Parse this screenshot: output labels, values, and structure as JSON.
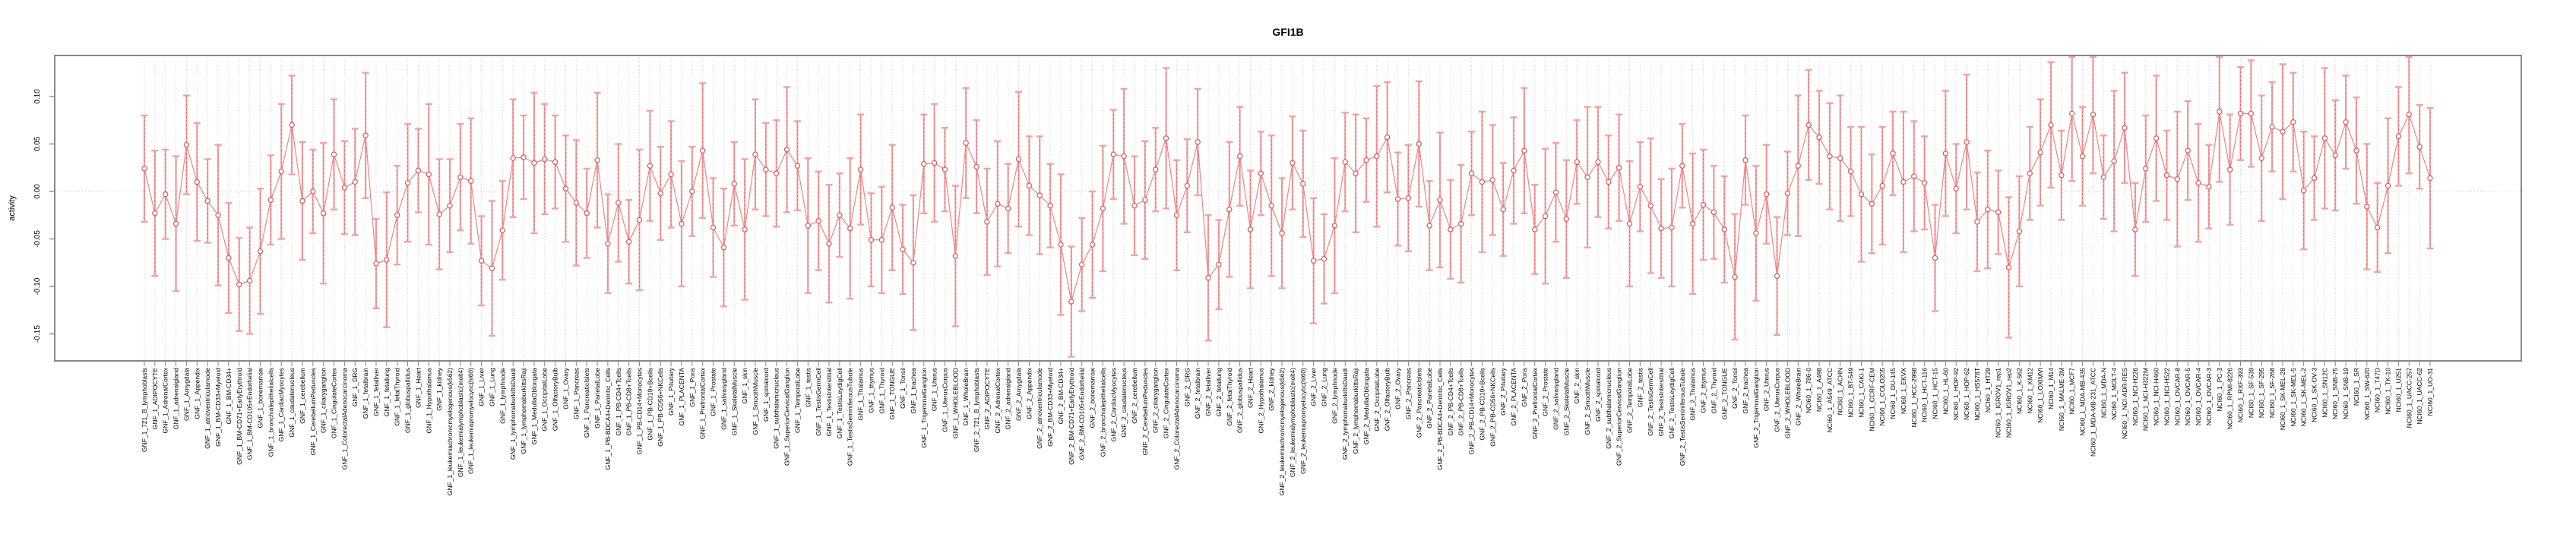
{
  "title": "GFI1B",
  "ylabel": "activity",
  "chart_data": {
    "type": "scatter",
    "subtype": "point-estimates-with-error-bars",
    "title": "GFI1B",
    "xlabel": "",
    "ylabel": "activity",
    "ylim": [
      -0.178,
      0.143
    ],
    "grid": {
      "vertical_dotted_per_category": true,
      "horizontal_dotted_at_zero": true
    },
    "legend": "none",
    "colors": {
      "error_bar": "#f3a2a2",
      "error_bar_dash": "#e06666",
      "point_stroke": "#dd5a5a",
      "series_line": "#ee8585",
      "grid_line": "#c9c9c9",
      "axis_box": "#878787",
      "text": "#000000"
    },
    "yticks": [
      {
        "value": 0.1,
        "label": "0.10"
      },
      {
        "value": 0.05,
        "label": "0.05"
      },
      {
        "value": 0.0,
        "label": "0.00"
      },
      {
        "value": -0.05,
        "label": "-0.05"
      },
      {
        "value": -0.1,
        "label": "-0.10"
      },
      {
        "value": -0.15,
        "label": "-0.15"
      }
    ],
    "x_groups": [
      {
        "prefix": "GNF_1_",
        "names": [
          "721_B_lymphoblasts",
          "ADIPOCYTE",
          "AdrenalCortex",
          "adrenalgland",
          "Amygdala",
          "Appendix",
          "atrioventricularnode",
          "BM-CD33+Myeloid",
          "BM-CD34+",
          "BM-CD71+EarlyErythroid",
          "BM-CD105+Endothelial",
          "bonemarrow",
          "bronchialepithelialcells",
          "CardiacMyocytes",
          "caudatenucleus",
          "cerebellum",
          "CerebellumPeduncles",
          "ciliaryganglion",
          "CingulateCortex",
          "ColorectalAdenocarcinoma",
          "DRG",
          "fetalbrain",
          "fetalliver",
          "fetallung",
          "fetalThyroid",
          "globuspallidus",
          "Heart",
          "Hypothalamus",
          "kidney",
          "leukemiachronicmyelogenous(k562)",
          "leukemialymphoblastic(molt4)",
          "leukemiapromyelocytic(hl60)",
          "Liver",
          "Lung",
          "lymphnode",
          "lymphomaburkittsDaudi",
          "lymphomaburkittsRaji",
          "MedullaOblongata",
          "OccipitalLobe",
          "OlfactoryBulb",
          "Ovary",
          "Pancreas",
          "PancreaticIslets",
          "ParietalLobe",
          "PB-BDCA4+Dentritic_Cells",
          "PB-CD4+Tcells",
          "PB-CD8+Tcells",
          "PB-CD14+Monocytes",
          "PB-CD19+Bcells",
          "PB-CD56+NKCells",
          "Pituitary",
          "PLACENTA",
          "Pons",
          "PrefrontalCortex",
          "Prostate",
          "salivarygland",
          "SkeletalMuscle",
          "skin",
          "SmoothMuscle",
          "spinalcord",
          "subthalamicnucleus",
          "SuperiorCervicalGanglion",
          "TemporalLobe",
          "testis",
          "TestisGermCell",
          "TestisInterstitial",
          "TestisLeydigCell",
          "TestisSeminiferousTubule",
          "Thalamus",
          "thymus",
          "Thyroid",
          "TONGUE",
          "Tonsil",
          "trachea",
          "TrigeminalGanglion",
          "Uterus",
          "UterusCorpus",
          "WHOLEBLOOD",
          "WholeBrain"
        ]
      },
      {
        "prefix": "GNF_2_",
        "names": [
          "721_B_lymphoblasts",
          "ADIPOCYTE",
          "AdrenalCortex",
          "adrenalgland",
          "Amygdala",
          "Appendix",
          "atrioventricularnode",
          "BM-CD33+Myeloid",
          "BM-CD34+",
          "BM-CD71+EarlyErythroid",
          "BM-CD105+Endothelial",
          "bonemarrow",
          "bronchialepithelialcells",
          "CardiacMyocytes",
          "caudatenucleus",
          "cerebellum",
          "CerebellumPeduncles",
          "ciliaryganglion",
          "CingulateCortex",
          "ColorectalAdenocarcinoma",
          "DRG",
          "fetalbrain",
          "fetalliver",
          "fetallung",
          "fetalThyroid",
          "globuspallidus",
          "Heart",
          "Hypothalamus",
          "kidney",
          "leukemiachronicmyelogenous(k562)",
          "leukemialymphoblastic(molt4)",
          "leukemiapromyelocytic(hl60)",
          "Liver",
          "Lung",
          "lymphnode",
          "lymphomaburkittsDaudi",
          "lymphomaburkittsRaji",
          "MedullaOblongata",
          "OccipitalLobe",
          "OlfactoryBulb",
          "Ovary",
          "Pancreas",
          "PancreaticIslets",
          "ParietalLobe",
          "PB-BDCA4+Dentritic_Cells",
          "PB-CD4+Tcells",
          "PB-CD8+Tcells",
          "PB-CD14+Monocytes",
          "PB-CD19+Bcells",
          "PB-CD56+NKCells",
          "Pituitary",
          "PLACENTA",
          "Pons",
          "PrefrontalCortex",
          "Prostate",
          "salivarygland",
          "SkeletalMuscle",
          "skin",
          "SmoothMuscle",
          "spinalcord",
          "subthalamicnucleus",
          "SuperiorCervicalGanglion",
          "TemporalLobe",
          "testis",
          "TestisGermCell",
          "TestisInterstitial",
          "TestisLeydigCell",
          "TestisSeminiferousTubule",
          "Thalamus",
          "thymus",
          "Thyroid",
          "TONGUE",
          "Tonsil",
          "trachea",
          "TrigeminalGanglion",
          "Uterus",
          "UterusCorpus",
          "WHOLEBLOOD",
          "WholeBrain"
        ]
      },
      {
        "prefix": "NCI60_1_",
        "names": [
          "786-0",
          "A498",
          "A549_ATCC",
          "ACHN",
          "BT-549",
          "CAKI-1",
          "CCRF-CEM",
          "COLO205",
          "DU-145",
          "EKVX",
          "HCC-2998",
          "HCT-116",
          "HCT-15",
          "HL-60",
          "HOP-92",
          "HOP-62",
          "HS578T",
          "HT29",
          "IGROV1_rep1",
          "IGROV1_rep2",
          "K-562",
          "KM12",
          "LOXIMVI",
          "M14",
          "MALME-3M",
          "MCF7",
          "MDA-MB-435",
          "MDA-MB-231_ATCC",
          "MDA-N",
          "MOLT-4",
          "NCI-ADR-RES",
          "NCI-H226",
          "NCI-H322M",
          "NCI-H460",
          "NCI-H522",
          "OVCAR-8",
          "OVCAR-5",
          "OVCAR-4",
          "OVCAR-3",
          "PC-3",
          "RPMI-8226",
          "RXF-393",
          "SF-539",
          "SF-295",
          "SF-268",
          "SK-MEL-28",
          "SK-MEL-5",
          "SK-MEL-2",
          "SK-OV-3",
          "SN12C",
          "SNB-75",
          "SNB-19",
          "SR",
          "SW-620",
          "T47D",
          "TK-10",
          "U251",
          "UACC-257",
          "UACC-62",
          "UO-31"
        ]
      }
    ],
    "values": [
      0.024,
      -0.023,
      -0.003,
      -0.034,
      0.049,
      0.01,
      -0.01,
      -0.025,
      -0.07,
      -0.098,
      -0.094,
      -0.063,
      -0.009,
      0.021,
      0.07,
      -0.01,
      0.0,
      -0.023,
      0.039,
      0.004,
      0.01,
      0.059,
      -0.076,
      -0.072,
      -0.025,
      0.009,
      0.022,
      0.018,
      -0.024,
      -0.015,
      0.015,
      0.011,
      -0.073,
      -0.081,
      -0.041,
      0.035,
      0.036,
      0.03,
      0.034,
      0.031,
      0.003,
      -0.012,
      -0.023,
      0.033,
      -0.055,
      -0.012,
      -0.053,
      -0.03,
      0.027,
      -0.002,
      0.018,
      -0.034,
      0.0,
      0.043,
      -0.038,
      -0.059,
      0.008,
      -0.04,
      0.039,
      0.023,
      0.019,
      0.044,
      0.027,
      -0.036,
      -0.031,
      -0.055,
      -0.025,
      -0.039,
      0.023,
      -0.051,
      -0.051,
      -0.017,
      -0.061,
      -0.075,
      0.029,
      0.03,
      0.023,
      -0.068,
      0.051,
      0.026,
      -0.032,
      -0.013,
      -0.018,
      0.034,
      0.006,
      -0.004,
      -0.015,
      -0.056,
      -0.116,
      -0.077,
      -0.056,
      -0.018,
      0.039,
      0.037,
      -0.015,
      -0.009,
      0.023,
      0.056,
      -0.025,
      0.006,
      0.052,
      -0.091,
      -0.077,
      -0.019,
      0.037,
      -0.04,
      0.019,
      -0.015,
      -0.044,
      0.03,
      0.008,
      -0.073,
      -0.071,
      -0.036,
      0.031,
      0.019,
      0.033,
      0.037,
      0.057,
      -0.008,
      -0.007,
      0.05,
      -0.036,
      -0.009,
      -0.04,
      -0.034,
      0.019,
      0.01,
      0.012,
      -0.019,
      0.022,
      0.043,
      -0.04,
      -0.026,
      -0.001,
      -0.029,
      0.031,
      0.015,
      0.031,
      0.01,
      0.025,
      -0.034,
      0.005,
      -0.015,
      -0.039,
      -0.038,
      0.027,
      -0.034,
      -0.014,
      -0.022,
      -0.04,
      -0.09,
      0.033,
      -0.044,
      -0.003,
      -0.089,
      -0.002,
      0.027,
      0.07,
      0.057,
      0.037,
      0.035,
      0.021,
      -0.003,
      -0.013,
      0.006,
      0.04,
      0.01,
      0.016,
      0.009,
      -0.07,
      0.04,
      0.003,
      0.052,
      -0.032,
      -0.019,
      -0.022,
      -0.08,
      -0.042,
      0.019,
      0.041,
      0.07,
      0.017,
      0.082,
      0.037,
      0.081,
      0.015,
      0.032,
      0.067,
      -0.04,
      0.024,
      0.056,
      0.017,
      0.013,
      0.043,
      0.009,
      0.005,
      0.084,
      0.023,
      0.082,
      0.082,
      0.035,
      0.068,
      0.063,
      0.073,
      0.001,
      0.014,
      0.056,
      0.038,
      0.073,
      0.043,
      -0.016,
      -0.038,
      0.006,
      0.058,
      0.081,
      0.047,
      0.014
    ],
    "err": [
      0.056,
      0.066,
      0.047,
      0.071,
      0.052,
      0.062,
      0.044,
      0.074,
      0.058,
      0.049,
      0.056,
      0.066,
      0.047,
      0.071,
      0.052,
      0.062,
      0.044,
      0.074,
      0.058,
      0.049,
      0.056,
      0.066,
      0.047,
      0.071,
      0.052,
      0.062,
      0.044,
      0.074,
      0.058,
      0.049,
      0.056,
      0.066,
      0.047,
      0.071,
      0.052,
      0.062,
      0.044,
      0.074,
      0.058,
      0.049,
      0.056,
      0.066,
      0.047,
      0.071,
      0.052,
      0.062,
      0.044,
      0.074,
      0.058,
      0.049,
      0.056,
      0.066,
      0.047,
      0.071,
      0.052,
      0.062,
      0.044,
      0.074,
      0.058,
      0.049,
      0.056,
      0.066,
      0.047,
      0.071,
      0.052,
      0.062,
      0.044,
      0.074,
      0.058,
      0.049,
      0.056,
      0.066,
      0.047,
      0.071,
      0.052,
      0.062,
      0.044,
      0.074,
      0.058,
      0.049,
      0.056,
      0.066,
      0.047,
      0.071,
      0.052,
      0.062,
      0.044,
      0.074,
      0.058,
      0.049,
      0.056,
      0.066,
      0.047,
      0.071,
      0.052,
      0.062,
      0.044,
      0.074,
      0.058,
      0.049,
      0.056,
      0.066,
      0.047,
      0.071,
      0.052,
      0.062,
      0.044,
      0.074,
      0.058,
      0.049,
      0.056,
      0.066,
      0.047,
      0.071,
      0.052,
      0.062,
      0.044,
      0.074,
      0.058,
      0.049,
      0.056,
      0.066,
      0.047,
      0.071,
      0.052,
      0.062,
      0.044,
      0.074,
      0.058,
      0.049,
      0.056,
      0.066,
      0.047,
      0.071,
      0.052,
      0.062,
      0.044,
      0.074,
      0.058,
      0.049,
      0.056,
      0.066,
      0.047,
      0.071,
      0.052,
      0.062,
      0.044,
      0.074,
      0.058,
      0.049,
      0.056,
      0.066,
      0.047,
      0.071,
      0.052,
      0.062,
      0.044,
      0.074,
      0.058,
      0.049,
      0.056,
      0.066,
      0.047,
      0.071,
      0.052,
      0.062,
      0.044,
      0.074,
      0.058,
      0.049,
      0.056,
      0.066,
      0.047,
      0.071,
      0.052,
      0.062,
      0.044,
      0.074,
      0.058,
      0.049,
      0.056,
      0.066,
      0.047,
      0.071,
      0.052,
      0.062,
      0.044,
      0.074,
      0.058,
      0.049,
      0.056,
      0.066,
      0.047,
      0.071,
      0.052,
      0.062,
      0.044,
      0.074,
      0.058,
      0.049,
      0.056,
      0.066,
      0.047,
      0.071,
      0.052,
      0.062,
      0.044,
      0.074,
      0.058,
      0.049,
      0.056,
      0.066,
      0.047,
      0.071,
      0.052,
      0.062,
      0.044,
      0.074
    ]
  }
}
